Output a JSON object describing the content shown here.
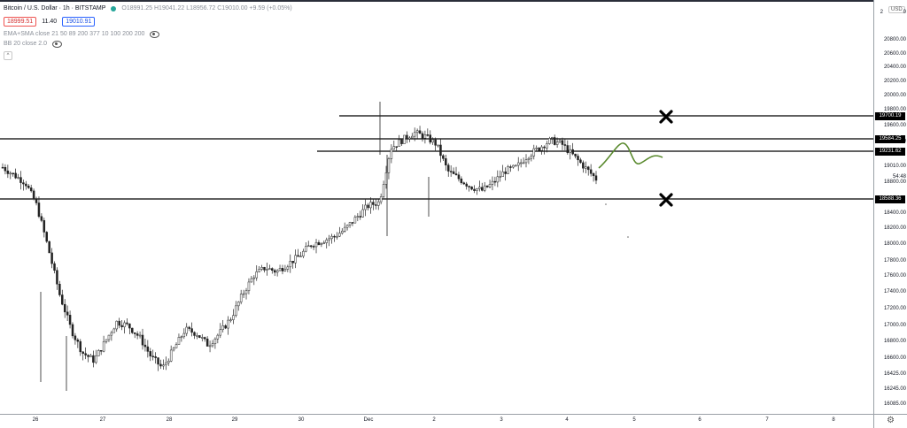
{
  "legend": {
    "title": "Bitcoin / U.S. Dollar · 1h · BITSTAMP",
    "ohlc": "O18991.25 H19041.22 L18956.72 C19010.00 +9.59 (+0.05%)",
    "sell_price": "18999.51",
    "spread": "11.40",
    "buy_price": "19010.91",
    "indicator_ema": "EMA+SMA close 21 50 89 200 377 10 100 200 200",
    "indicator_bb": "BB 20 close 2.0"
  },
  "price_scale": {
    "currency": "USD",
    "top_partial": "2",
    "top_partial_right": "0",
    "labels": [
      "20800.00",
      "20600.00",
      "20400.00",
      "20200.00",
      "20000.00",
      "19800.00",
      "19600.00",
      "19400.00",
      "19010.00",
      "18800.00",
      "18400.00",
      "18200.00",
      "18000.00",
      "17800.00",
      "17600.00",
      "17400.00",
      "17200.00",
      "17000.00",
      "16800.00",
      "16600.00",
      "16425.00",
      "16245.00",
      "16085.00"
    ],
    "countdown": "54:48"
  },
  "levels": [
    "19700.19",
    "19584.25",
    "19231.62",
    "18588.36"
  ],
  "time_scale": [
    "26",
    "27",
    "28",
    "29",
    "30",
    "Dec",
    "2",
    "3",
    "4",
    "5",
    "6",
    "7",
    "8"
  ],
  "chart_data": {
    "type": "candlestick",
    "symbol": "BTCUSD",
    "interval": "1h",
    "y_range": [
      16000,
      21000
    ],
    "horizontal_levels": [
      19700.19,
      19584.25,
      19231.62,
      18588.36
    ],
    "x_ticks": [
      "26",
      "27",
      "28",
      "29",
      "30",
      "Dec",
      "2",
      "3",
      "4",
      "5",
      "6",
      "7",
      "8"
    ],
    "path_points": [
      [
        0,
        19150
      ],
      [
        1,
        19050
      ],
      [
        2,
        18950
      ],
      [
        3,
        18650
      ],
      [
        4,
        18100
      ],
      [
        5,
        17500
      ],
      [
        6,
        17050
      ],
      [
        7,
        16750
      ],
      [
        8,
        16650
      ],
      [
        9,
        16900
      ],
      [
        10,
        17150
      ],
      [
        11,
        17100
      ],
      [
        12,
        16950
      ],
      [
        13,
        16700
      ],
      [
        14,
        16550
      ],
      [
        15,
        16800
      ],
      [
        16,
        17050
      ],
      [
        17,
        17000
      ],
      [
        18,
        16850
      ],
      [
        19,
        17000
      ],
      [
        20,
        17200
      ],
      [
        21,
        17500
      ],
      [
        22,
        17750
      ],
      [
        23,
        17850
      ],
      [
        24,
        17800
      ],
      [
        25,
        17900
      ],
      [
        26,
        18000
      ],
      [
        27,
        18150
      ],
      [
        28,
        18200
      ],
      [
        29,
        18250
      ],
      [
        30,
        18350
      ],
      [
        31,
        18500
      ],
      [
        32,
        18650
      ],
      [
        33,
        18700
      ],
      [
        34,
        19400
      ],
      [
        35,
        19500
      ],
      [
        36,
        19600
      ],
      [
        37,
        19550
      ],
      [
        38,
        19450
      ],
      [
        39,
        19100
      ],
      [
        40,
        19000
      ],
      [
        41,
        18900
      ],
      [
        42,
        18850
      ],
      [
        43,
        18950
      ],
      [
        44,
        19100
      ],
      [
        45,
        19150
      ],
      [
        46,
        19300
      ],
      [
        47,
        19400
      ],
      [
        48,
        19500
      ],
      [
        49,
        19450
      ],
      [
        50,
        19300
      ],
      [
        51,
        19150
      ],
      [
        52,
        19000
      ]
    ],
    "projection_color": "#5a8a2e"
  }
}
